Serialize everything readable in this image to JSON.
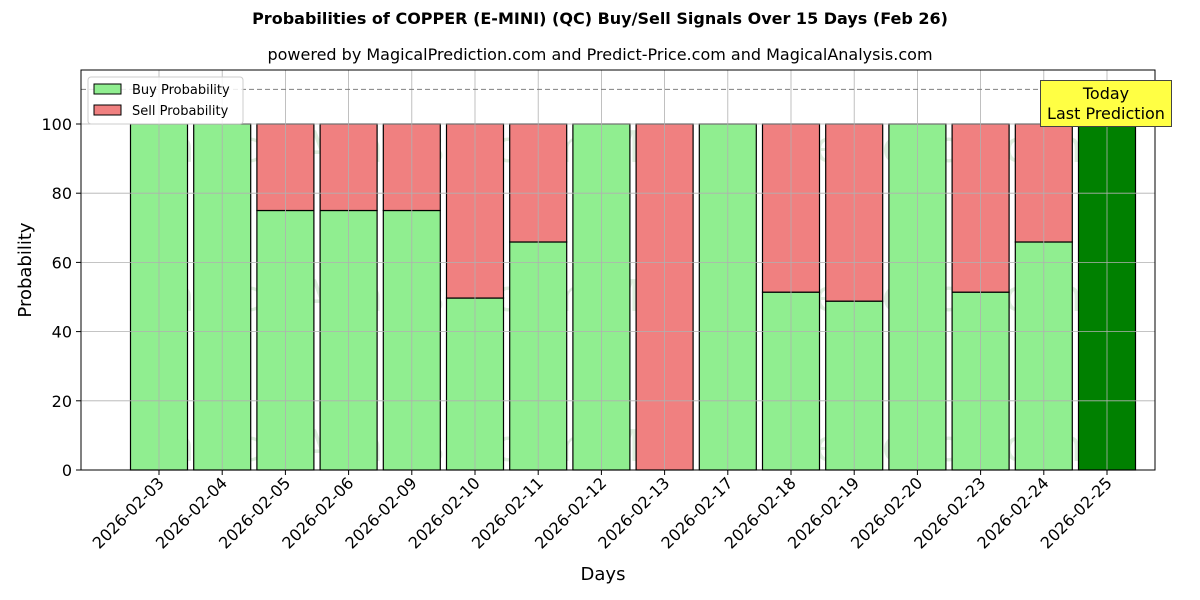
{
  "chart_data": {
    "type": "bar",
    "stacked": true,
    "title": "Probabilities of COPPER (E-MINI) (QC) Buy/Sell Signals Over 15 Days (Feb 26)",
    "subtitle": "powered by MagicalPrediction.com and Predict-Price.com and MagicalAnalysis.com",
    "xlabel": "Days",
    "ylabel": "Probability",
    "ylim": [
      0,
      115
    ],
    "yticks": [
      0,
      20,
      40,
      60,
      80,
      100
    ],
    "grid": true,
    "legend_position": "upper left",
    "reference_line": {
      "y": 110,
      "style": "dashed",
      "color": "#808080"
    },
    "categories": [
      "2026-02-03",
      "2026-02-04",
      "2026-02-05",
      "2026-02-06",
      "2026-02-09",
      "2026-02-10",
      "2026-02-11",
      "2026-02-12",
      "2026-02-13",
      "2026-02-17",
      "2026-02-18",
      "2026-02-19",
      "2026-02-20",
      "2026-02-23",
      "2026-02-24",
      "2026-02-25"
    ],
    "series": [
      {
        "name": "Buy Probability",
        "color": "#90ee90",
        "values": [
          100,
          100,
          75,
          75,
          75,
          49.7,
          65.9,
          100,
          0,
          100,
          51.4,
          48.8,
          100,
          51.4,
          65.9,
          100
        ]
      },
      {
        "name": "Sell Probability",
        "color": "#f08080",
        "values": [
          0,
          0,
          25,
          25,
          25,
          50.3,
          34.1,
          0,
          100,
          0,
          48.6,
          51.2,
          0,
          48.6,
          34.1,
          0
        ]
      }
    ],
    "highlight": {
      "category": "2026-02-25",
      "color": "#008000",
      "label": "Today\nLast Prediction"
    },
    "annotation": {
      "line1": "Today",
      "line2": "Last Prediction",
      "background": "#ffff44"
    },
    "watermarks": [
      "MagicalAnalysis.com",
      "MagicalPrediction.com"
    ]
  }
}
